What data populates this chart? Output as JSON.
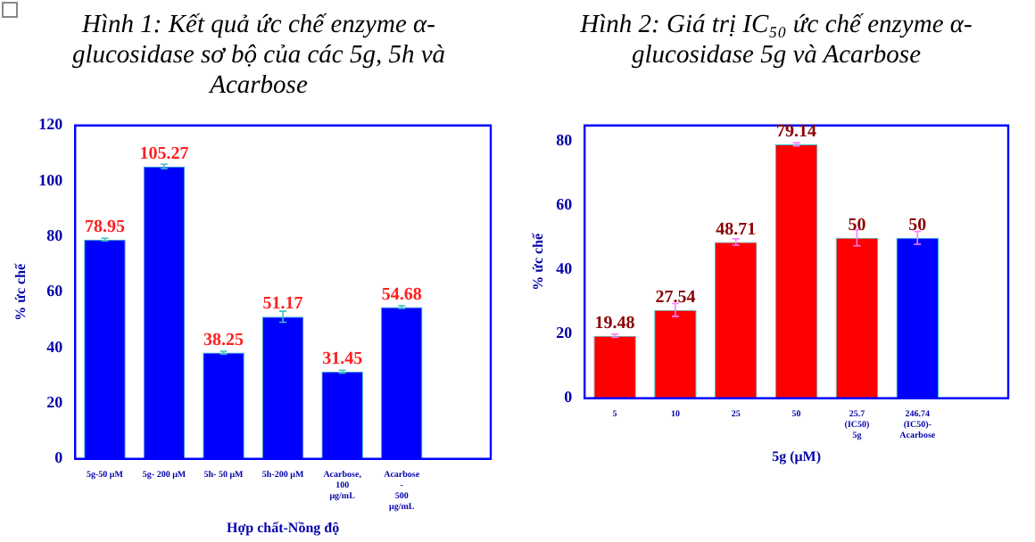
{
  "chart_data": [
    {
      "type": "bar",
      "title": "Hình 1: Kết quả ức chế enzyme α-glucosidase sơ bộ của các 5g, 5h và Acarbose",
      "xlabel": "Hợp chất-Nồng độ",
      "ylabel": "% ức chế",
      "categories": [
        "5g-50 μM",
        "5g- 200 μM",
        "5h- 50 μM",
        "5h-200 μM",
        "Acarbose, 100 μg/mL",
        "Acarbose - 500 μg/mL",
        null
      ],
      "values": [
        78.95,
        105.27,
        38.25,
        51.17,
        31.45,
        54.68,
        null
      ],
      "errors": [
        0.5,
        0.8,
        0.5,
        2,
        0.5,
        0.5,
        null
      ],
      "color": "#0000ff",
      "ylim": [
        0,
        120
      ],
      "yticks": [
        0,
        20,
        40,
        60,
        80,
        100,
        120
      ],
      "data_labels": true,
      "grid": false,
      "legend": false
    },
    {
      "type": "bar",
      "title": "Hình 2: Giá trị IC₅₀ ức chế enzyme α-glucosidase 5g và Acarbose",
      "xlabel": "5g (μM)",
      "ylabel": "% ức chế",
      "categories": [
        "5",
        "10",
        "25",
        "50",
        "25.7 (IC50) 5g",
        "246.74 (IC50)- Acarbose",
        null
      ],
      "values": [
        19.48,
        27.54,
        48.71,
        79.14,
        50,
        50,
        null
      ],
      "errors": [
        0.5,
        2,
        1,
        0.5,
        2.5,
        2,
        null
      ],
      "colors": [
        "#ff0000",
        "#ff0000",
        "#ff0000",
        "#ff0000",
        "#ff0000",
        "#0000ff",
        null
      ],
      "ylim": [
        0,
        85
      ],
      "yticks": [
        0,
        20,
        40,
        60,
        80
      ],
      "data_labels": true,
      "grid": false,
      "legend": false
    }
  ]
}
